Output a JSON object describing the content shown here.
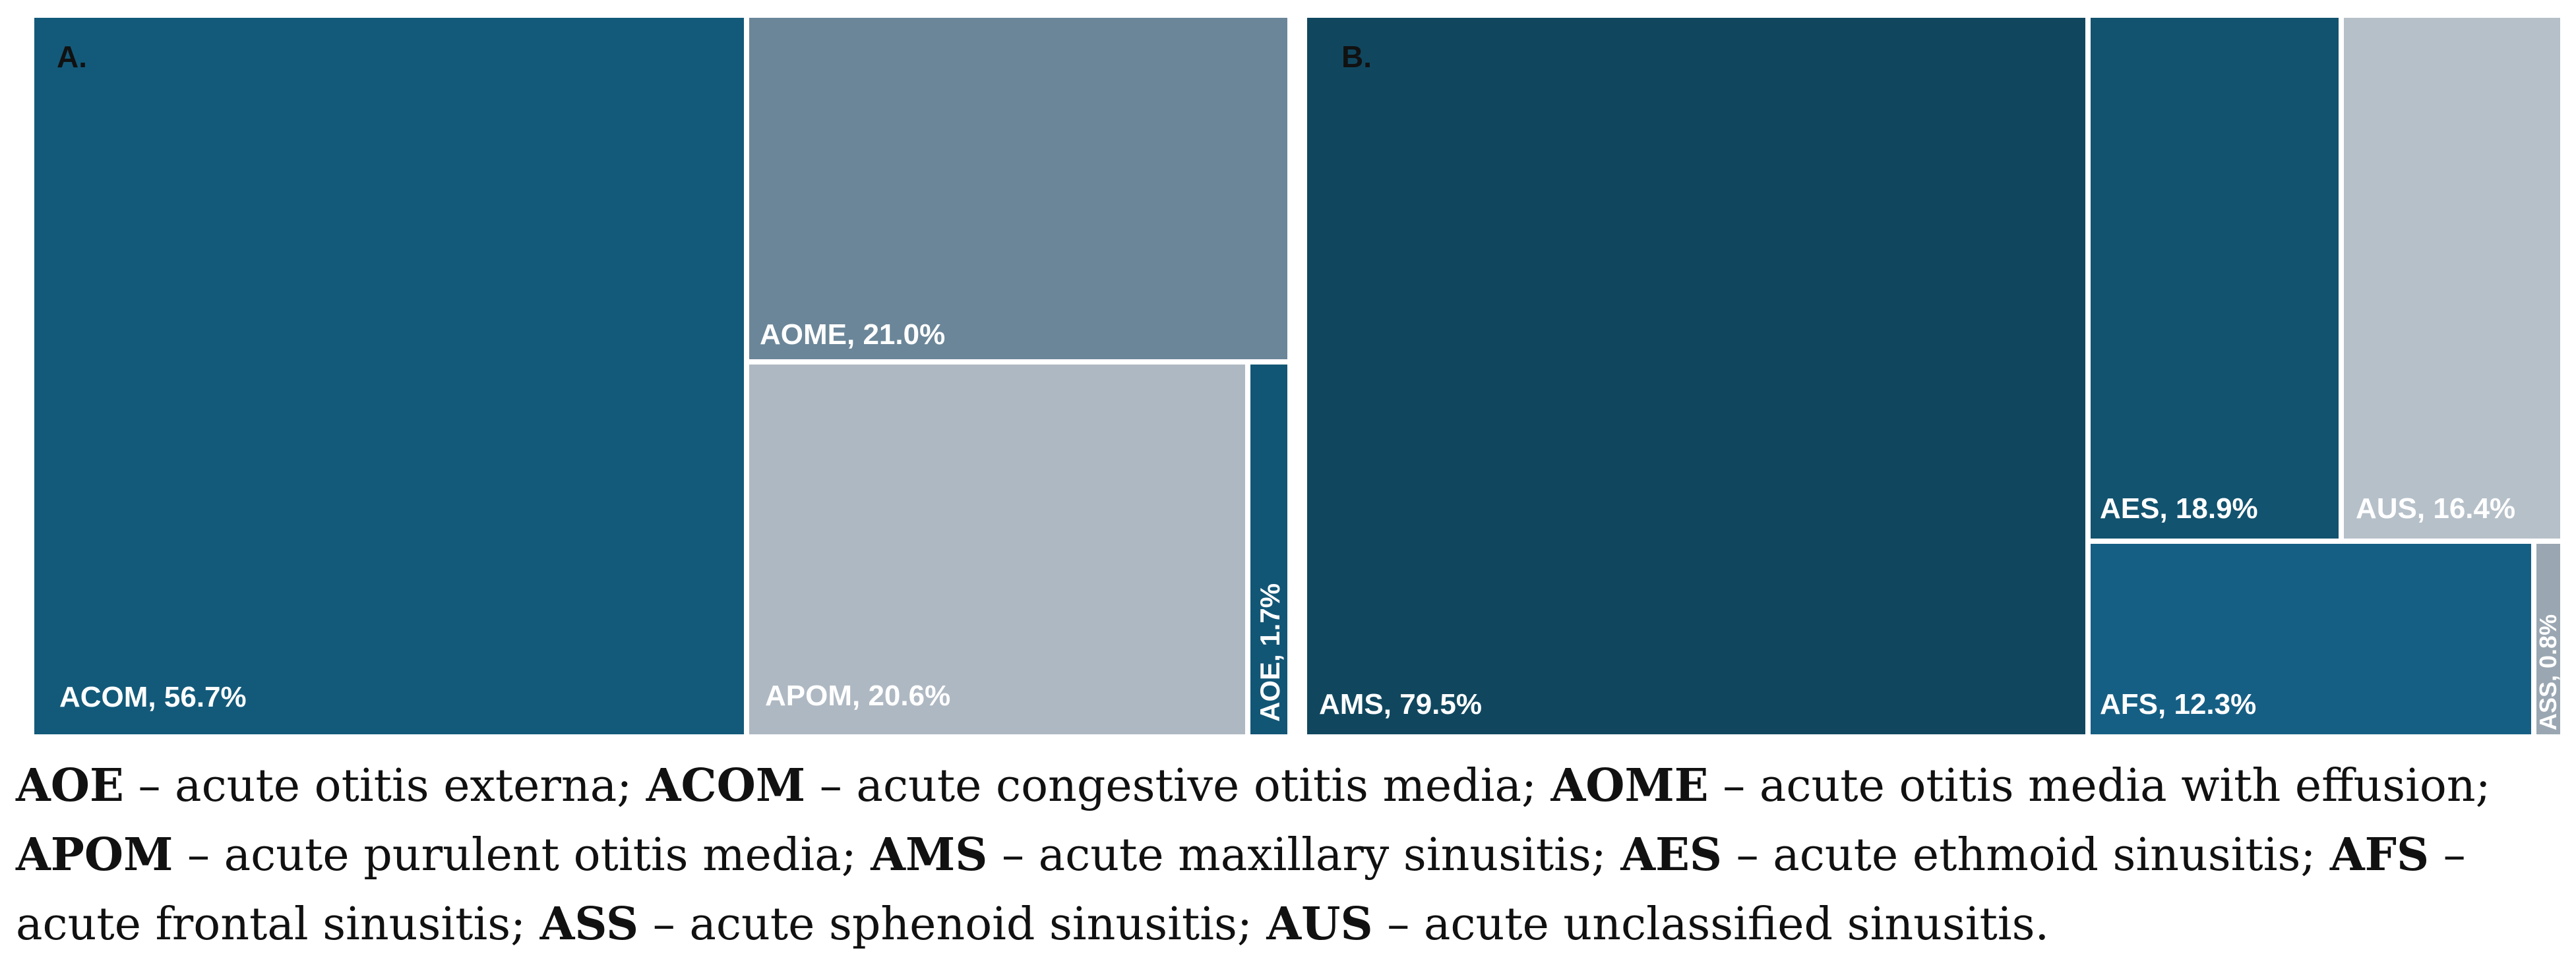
{
  "chart_data": [
    {
      "type": "treemap",
      "panel_label": "A.",
      "cells": [
        {
          "name": "ACOM",
          "value": 56.7,
          "label": "ACOM, 56.7%",
          "color": "#135a7a",
          "text_color": "#ffffff"
        },
        {
          "name": "AOME",
          "value": 21.0,
          "label": "AOME, 21.0%",
          "color": "#6b8699",
          "text_color": "#ffffff"
        },
        {
          "name": "APOM",
          "value": 20.6,
          "label": "APOM, 20.6%",
          "color": "#aeb8c2",
          "text_color": "#ffffff"
        },
        {
          "name": "AOE",
          "value": 1.7,
          "label": "AOE, 1.7%",
          "color": "#125676",
          "text_color": "#ffffff"
        }
      ]
    },
    {
      "type": "treemap",
      "panel_label": "B.",
      "cells": [
        {
          "name": "AMS",
          "value": 79.5,
          "label": "AMS, 79.5%",
          "color": "#10475f",
          "text_color": "#ffffff"
        },
        {
          "name": "AES",
          "value": 18.9,
          "label": "AES, 18.9%",
          "color": "#12536f",
          "text_color": "#ffffff"
        },
        {
          "name": "AUS",
          "value": 16.4,
          "label": "AUS, 16.4%",
          "color": "#b6c0c9",
          "text_color": "#ffffff"
        },
        {
          "name": "AFS",
          "value": 12.3,
          "label": "AFS, 12.3%",
          "color": "#165f84",
          "text_color": "#ffffff"
        },
        {
          "name": "ASS",
          "value": 0.8,
          "label": "ASS, 0.8%",
          "color": "#9aa7b2",
          "text_color": "#ffffff"
        }
      ]
    }
  ],
  "caption": [
    {
      "abbr": "AOE",
      "text": " – acute otitis externa; "
    },
    {
      "abbr": "ACOM",
      "text": " – acute congestive otitis media; "
    },
    {
      "abbr": "AOME",
      "text": " – acute otitis media with effusion; "
    },
    {
      "abbr": "APOM",
      "text": " – acute purulent otitis media; "
    },
    {
      "abbr": "AMS",
      "text": " – acute maxillary sinusitis; "
    },
    {
      "abbr": "AES",
      "text": " – acute ethmoid sinusitis; "
    },
    {
      "abbr": "AFS",
      "text": " – acute frontal sinusitis; "
    },
    {
      "abbr": "ASS",
      "text": " – acute sphenoid sinusitis; "
    },
    {
      "abbr": "AUS",
      "text": " – acute unclassified sinusitis."
    }
  ]
}
